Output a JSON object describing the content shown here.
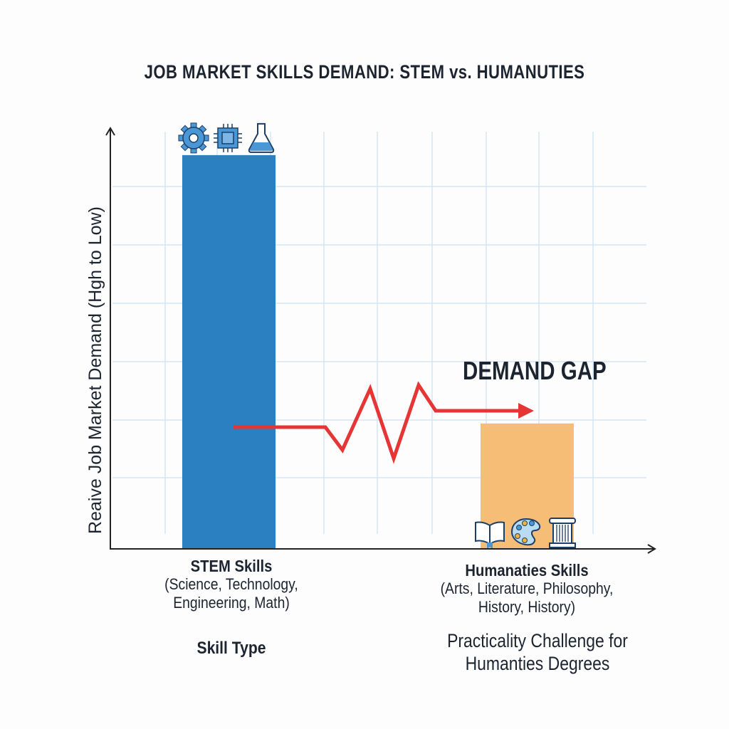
{
  "chart_data": {
    "type": "bar",
    "title": "JOB MARKET SKILLS DEMAND: STEM vs. HUMANUTIES",
    "xlabel": "Skill Type",
    "ylabel": "Reaive  Job Market Demand (Hgh to Low)",
    "ylim": [
      0,
      7.2
    ],
    "grid": true,
    "categories": [
      {
        "name": "STEM Skills",
        "detail1": "(Science, Technology,",
        "detail2": "Engineering, Math)"
      },
      {
        "name": "Humanaties Skills",
        "detail1": "(Arts, Literature, Philosophy,",
        "detail2": "History, History)"
      }
    ],
    "values": [
      6.75,
      2.15
    ],
    "colors": [
      "#2a80c0",
      "#f6bd77"
    ],
    "annotation": "DEMAND GAP",
    "note": [
      "Practicality Challenge for",
      "Humanties Degrees"
    ],
    "icons": {
      "stem": [
        "gear-icon",
        "chip-icon",
        "flask-icon"
      ],
      "humanities": [
        "book-icon",
        "palette-icon",
        "column-icon"
      ]
    },
    "gap_line_color": "#e63535"
  }
}
